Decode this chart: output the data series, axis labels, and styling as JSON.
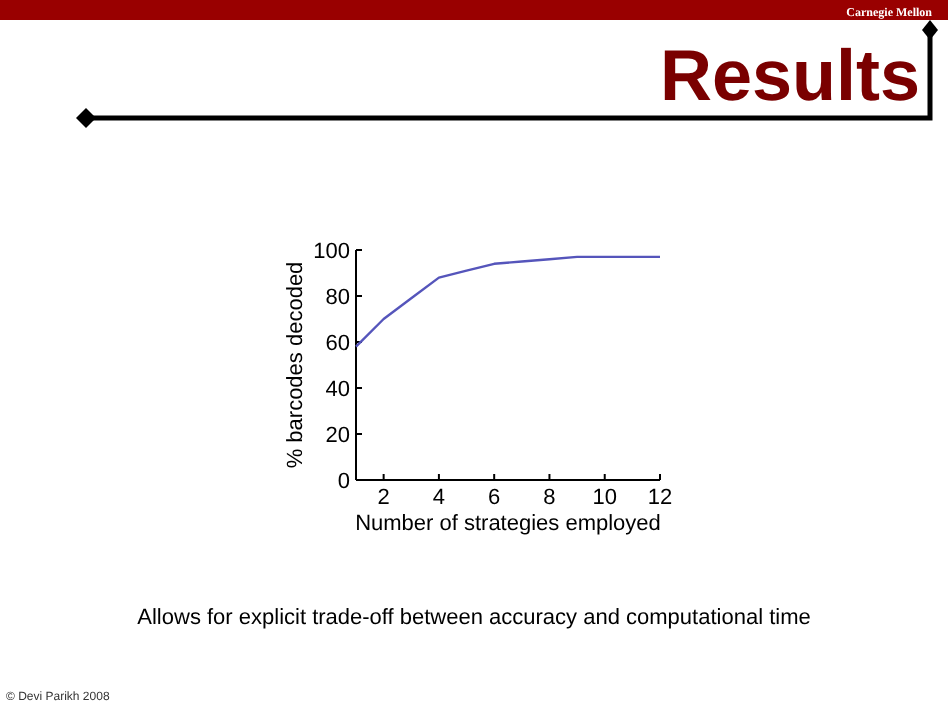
{
  "chart_data": {
    "type": "line",
    "title": "Results",
    "annotations": [
      "Carnegie Mellon",
      "Allows for explicit trade-off between accuracy and computational time",
      "© Devi Parikh 2008"
    ],
    "xlabel": "Number of strategies employed",
    "ylabel": "% barcodes decoded",
    "x": [
      1,
      2,
      3,
      4,
      5,
      6,
      7,
      8,
      9,
      10,
      11,
      12
    ],
    "series": [
      {
        "color": "#5555bb",
        "values": [
          58,
          70,
          79,
          88,
          91,
          94,
          95,
          96,
          97,
          97,
          97,
          97
        ]
      }
    ],
    "xlim": [
      1,
      12
    ],
    "xticks": [
      2,
      4,
      6,
      8,
      10,
      12
    ],
    "ylim": [
      0,
      100
    ],
    "yticks": [
      0,
      20,
      40,
      60,
      80,
      100
    ],
    "grid": false,
    "marker": "none",
    "line_style": "solid"
  }
}
